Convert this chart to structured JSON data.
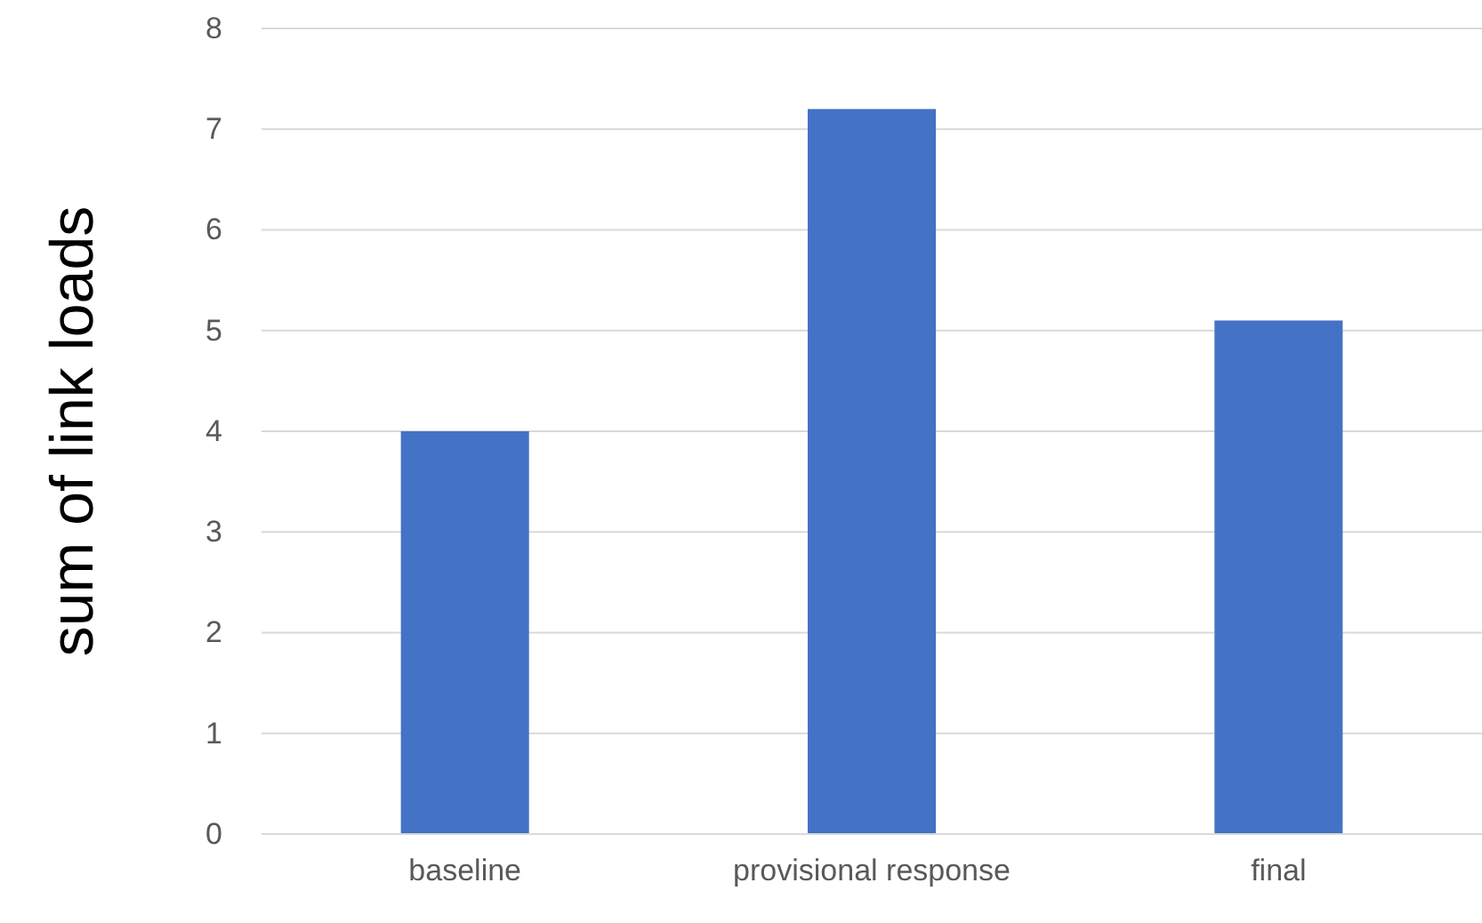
{
  "chart_data": {
    "type": "bar",
    "ylabel": "sum of link loads",
    "categories": [
      "baseline",
      "provisional response",
      "final"
    ],
    "values": [
      4,
      7.2,
      5.1
    ],
    "color": "#4472c4",
    "ylim": [
      0,
      8
    ],
    "yticks": [
      0,
      1,
      2,
      3,
      4,
      5,
      6,
      7,
      8
    ],
    "grid": "y"
  }
}
